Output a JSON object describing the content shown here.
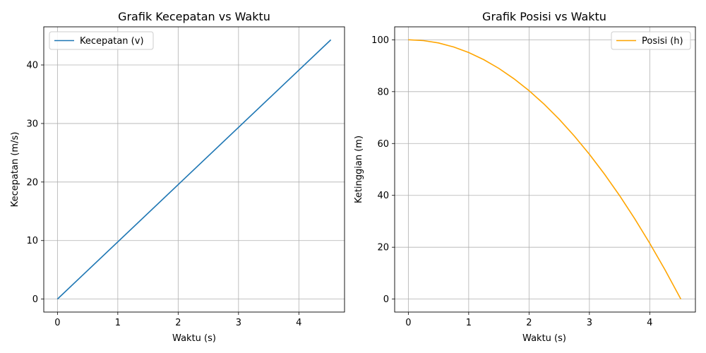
{
  "chart_data": [
    {
      "type": "line",
      "title": "Grafik Kecepatan vs Waktu",
      "xlabel": "Waktu (s)",
      "ylabel": "Kecepatan (m/s)",
      "xlim": [
        -0.2265,
        4.7565
      ],
      "ylim": [
        -2.215,
        46.515
      ],
      "xticks": [
        0,
        1,
        2,
        3,
        4
      ],
      "yticks": [
        0,
        10,
        20,
        30,
        40
      ],
      "grid": true,
      "legend_position": "upper left",
      "series": [
        {
          "name": "Kecepatan (v)",
          "color": "#1f77b4",
          "x": [
            0,
            4.53
          ],
          "y": [
            0,
            44.3
          ]
        }
      ]
    },
    {
      "type": "line",
      "title": "Grafik Posisi vs Waktu",
      "xlabel": "Waktu (s)",
      "ylabel": "Ketinggian (m)",
      "xlim": [
        -0.2265,
        4.7565
      ],
      "ylim": [
        -5,
        105
      ],
      "xticks": [
        0,
        1,
        2,
        3,
        4
      ],
      "yticks": [
        0,
        20,
        40,
        60,
        80,
        100
      ],
      "grid": true,
      "legend_position": "upper right",
      "series": [
        {
          "name": "Posisi (h)",
          "color": "#ffa500",
          "x": [
            0,
            0.25,
            0.5,
            0.75,
            1.0,
            1.25,
            1.5,
            1.75,
            2.0,
            2.25,
            2.5,
            2.75,
            3.0,
            3.25,
            3.5,
            3.75,
            4.0,
            4.25,
            4.515
          ],
          "y": [
            100,
            99.69,
            98.78,
            97.24,
            95.1,
            92.34,
            88.97,
            84.98,
            80.38,
            75.17,
            69.34,
            62.91,
            55.86,
            48.19,
            39.93,
            31.02,
            21.52,
            11.41,
            0
          ]
        }
      ]
    }
  ]
}
